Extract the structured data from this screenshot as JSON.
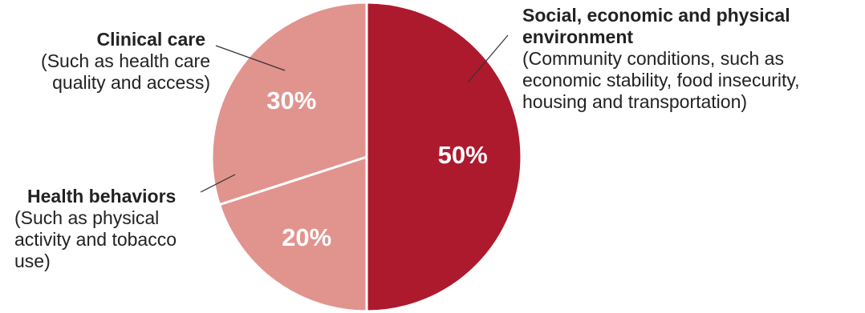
{
  "chart_data": {
    "type": "pie",
    "slices": [
      {
        "label": "Social, economic and physical environment",
        "description": "(Community conditions, such as economic stability, food insecurity, housing and transportation)",
        "value": 50,
        "value_label": "50%",
        "color": "#ad1a2e"
      },
      {
        "label": "Clinical care",
        "description": "(Such as health care quality and access)",
        "value": 20,
        "value_label": "20%",
        "color": "#e1938e"
      },
      {
        "label": "Health behaviors",
        "description": "(Such as physical activity and tobacco use)",
        "value": 30,
        "value_label": "30%",
        "color": "#e1938e"
      }
    ],
    "start_angle_deg": 0,
    "direction": "clockwise",
    "separator_color": "#ffffff",
    "legend": "none"
  }
}
